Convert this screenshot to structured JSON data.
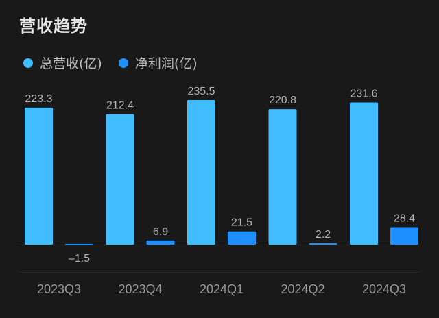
{
  "chart_data": {
    "type": "bar",
    "title": "营收趋势",
    "categories": [
      "2023Q3",
      "2023Q4",
      "2024Q1",
      "2024Q2",
      "2024Q3"
    ],
    "series": [
      {
        "name": "总营收(亿)",
        "color": "#40bdff",
        "values": [
          223.3,
          212.4,
          235.5,
          220.8,
          231.6
        ]
      },
      {
        "name": "净利润(亿)",
        "color": "#1e8fff",
        "values": [
          -1.5,
          6.9,
          21.5,
          2.2,
          28.4
        ]
      }
    ],
    "legend": "top-left",
    "grid": false,
    "data_labels": true
  }
}
